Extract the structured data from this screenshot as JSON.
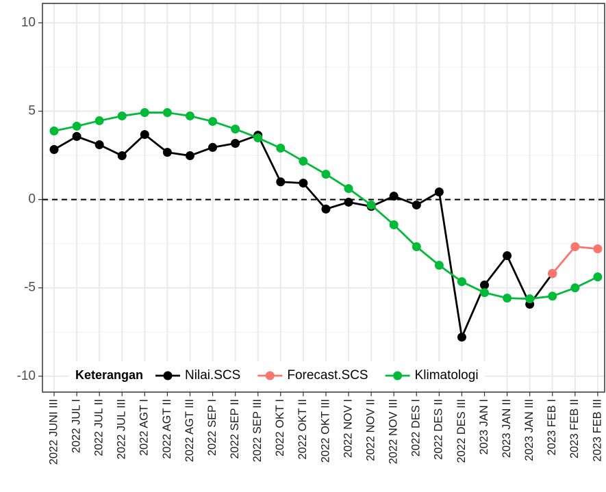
{
  "chart_data": {
    "type": "line",
    "categories": [
      "2022 JUNI III",
      "2022 JUL I",
      "2022 JUL II",
      "2022 JUL III",
      "2022 AGT I",
      "2022 AGT II",
      "2022 AGT III",
      "2022 SEP I",
      "2022 SEP II",
      "2022 SEP III",
      "2022 OKT I",
      "2022 OKT II",
      "2022 OKT III",
      "2022 NOV I",
      "2022 NOV II",
      "2022 NOV III",
      "2022 DES I",
      "2022 DES II",
      "2022 DES III",
      "2023 JAN I",
      "2023 JAN II",
      "2023 JAN III",
      "2023 FEB I",
      "2023 FEB II",
      "2023 FEB III"
    ],
    "series": [
      {
        "name": "Nilai.SCS",
        "color": "#000000",
        "values": [
          2.83,
          3.57,
          3.1,
          2.48,
          3.68,
          2.67,
          2.48,
          2.95,
          3.18,
          3.64,
          1.0,
          0.93,
          -0.54,
          -0.15,
          -0.39,
          0.19,
          -0.31,
          0.43,
          -7.79,
          -4.84,
          -3.18,
          -5.93,
          -4.19,
          null,
          null
        ]
      },
      {
        "name": "Forecast.SCS",
        "color": "#F8766D",
        "values": [
          null,
          null,
          null,
          null,
          null,
          null,
          null,
          null,
          null,
          null,
          null,
          null,
          null,
          null,
          null,
          null,
          null,
          null,
          null,
          null,
          null,
          null,
          -4.19,
          -2.67,
          -2.79
        ]
      },
      {
        "name": "Klimatologi",
        "color": "#00BA38",
        "values": [
          3.88,
          4.15,
          4.46,
          4.73,
          4.92,
          4.92,
          4.73,
          4.42,
          3.99,
          3.49,
          2.91,
          2.17,
          1.43,
          0.62,
          -0.31,
          -1.43,
          -2.67,
          -3.72,
          -4.65,
          -5.27,
          -5.58,
          -5.62,
          -5.47,
          -5.0,
          -4.38
        ]
      }
    ],
    "legend_title": "Keterangan",
    "legend": "bottom",
    "ylim": [
      -10.9,
      11.1
    ],
    "yticks": [
      -10,
      -5,
      0,
      5,
      10
    ],
    "yminor": [
      -7.5,
      -2.5,
      2.5,
      7.5
    ],
    "hline": 0,
    "grid": true
  }
}
